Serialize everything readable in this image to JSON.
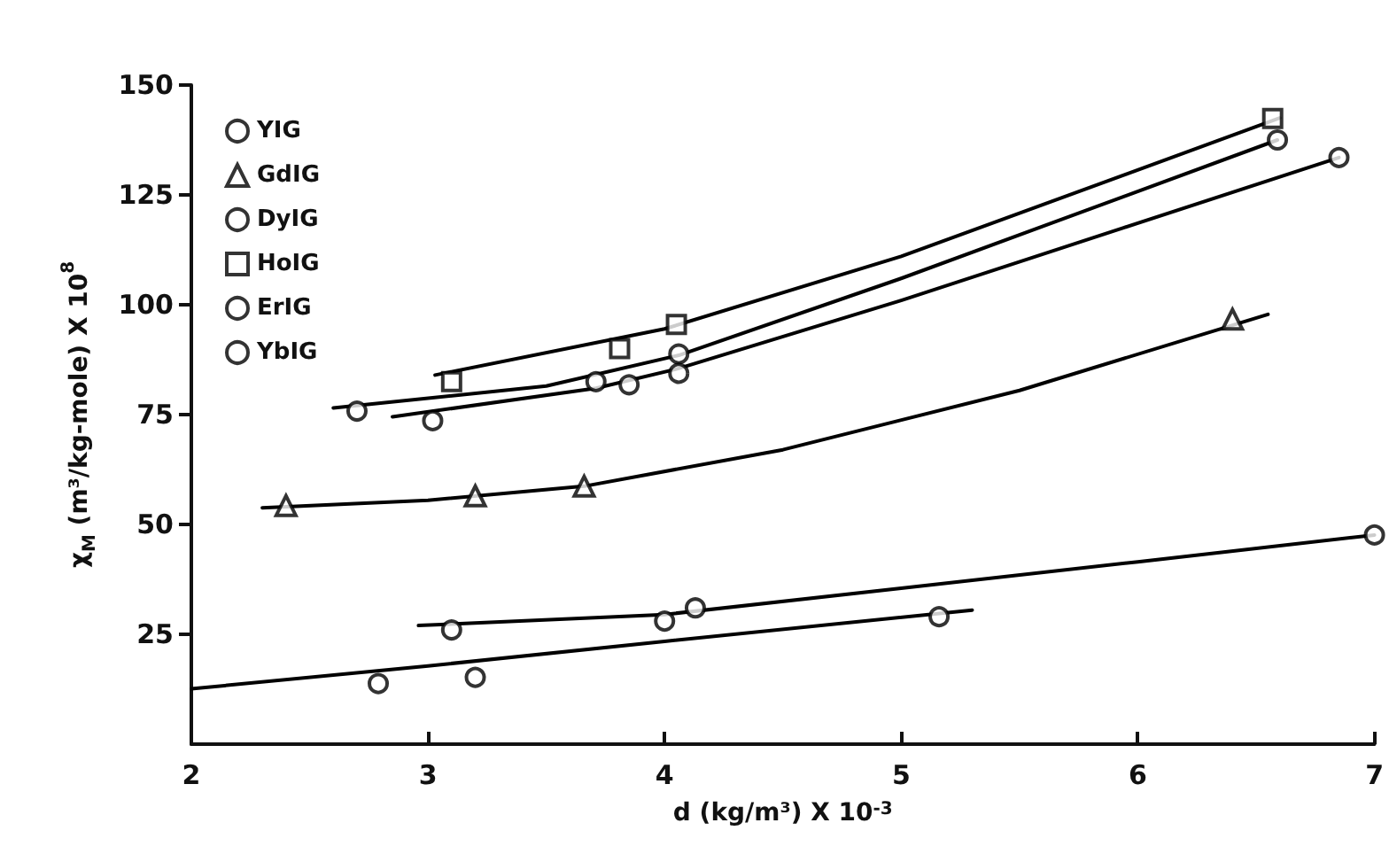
{
  "chart_data": {
    "type": "scatter",
    "xlabel": "d (kg/m³) X 10$^{-3}$",
    "ylabel": "χ$_{M}$ (m³/kg-mole) X 10$^{8}$",
    "xlim": [
      2,
      7
    ],
    "xticks": [
      2,
      3,
      4,
      5,
      6,
      7
    ],
    "ylim": [
      0,
      150
    ],
    "yticks": [
      25,
      50,
      75,
      100,
      125,
      150
    ],
    "grid": false,
    "legend": "top left",
    "series": [
      {
        "name": "YIG",
        "color": "#000000",
        "marker": "circle",
        "x": [
          2.79,
          3.2,
          5.16
        ],
        "values": [
          13.8,
          15.2,
          29
        ]
      },
      {
        "name": "GdIG",
        "color": "#000000",
        "marker": "triangle",
        "x": [
          2.4,
          3.2,
          3.66,
          6.4
        ],
        "values": [
          54.3,
          56.5,
          58.7,
          96.7
        ]
      },
      {
        "name": "DyIG",
        "color": "#000000",
        "marker": "circle",
        "x": [
          2.7,
          4.06,
          6.59
        ],
        "values": [
          75.8,
          88.8,
          137.5
        ]
      },
      {
        "name": "HoIG",
        "color": "#000000",
        "marker": "square",
        "x": [
          3.1,
          3.81,
          4.05,
          6.57
        ],
        "values": [
          82.5,
          90,
          95.5,
          142.4
        ]
      },
      {
        "name": "ErIG",
        "color": "#000000",
        "marker": "circle",
        "x": [
          3.02,
          3.71,
          3.85,
          4.06,
          6.85
        ],
        "values": [
          73.6,
          82.5,
          81.8,
          84.4,
          133.5
        ]
      },
      {
        "name": "YbIG",
        "color": "#000000",
        "marker": "circle",
        "x": [
          3.1,
          4.0,
          4.13,
          7.0
        ],
        "values": [
          26,
          28,
          31,
          47.6
        ]
      },
      {
        "type": "line",
        "color": "#000000",
        "marker": "none",
        "x": [
          2,
          3,
          4,
          5.3
        ],
        "values": [
          12.6,
          17.8,
          23.4,
          30.5
        ]
      },
      {
        "type": "line",
        "color": "#000000",
        "marker": "none",
        "x": [
          2.3,
          3,
          3.66,
          4.5,
          5.5,
          6.55
        ],
        "values": [
          53.8,
          55.5,
          58.7,
          67,
          80.5,
          97.8
        ]
      },
      {
        "type": "line",
        "color": "#000000",
        "marker": "none",
        "x": [
          2.6,
          3.5,
          4.06,
          5,
          6.59
        ],
        "values": [
          76.5,
          81.5,
          88.5,
          106,
          137.5
        ]
      },
      {
        "type": "line",
        "color": "#000000",
        "marker": "none",
        "x": [
          3.03,
          4,
          5,
          6.6
        ],
        "values": [
          84,
          94.5,
          111,
          142.5
        ]
      },
      {
        "type": "line",
        "color": "#000000",
        "marker": "none",
        "x": [
          2.85,
          3.71,
          4.06,
          5,
          6.85
        ],
        "values": [
          74.5,
          81,
          85.5,
          101,
          133.5
        ]
      },
      {
        "type": "line",
        "color": "#000000",
        "marker": "none",
        "x": [
          2.96,
          4,
          5,
          6,
          7
        ],
        "values": [
          27,
          29.5,
          35.5,
          41.5,
          47.6
        ]
      }
    ]
  }
}
